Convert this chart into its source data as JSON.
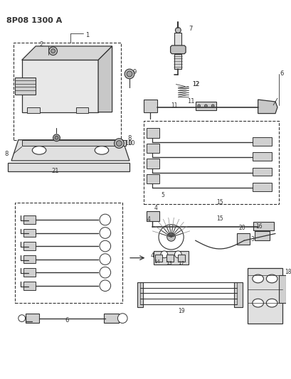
{
  "title": "8P08 1300 A",
  "bg_color": "#ffffff",
  "line_color": "#333333",
  "fig_width": 4.1,
  "fig_height": 5.33,
  "dpi": 100
}
